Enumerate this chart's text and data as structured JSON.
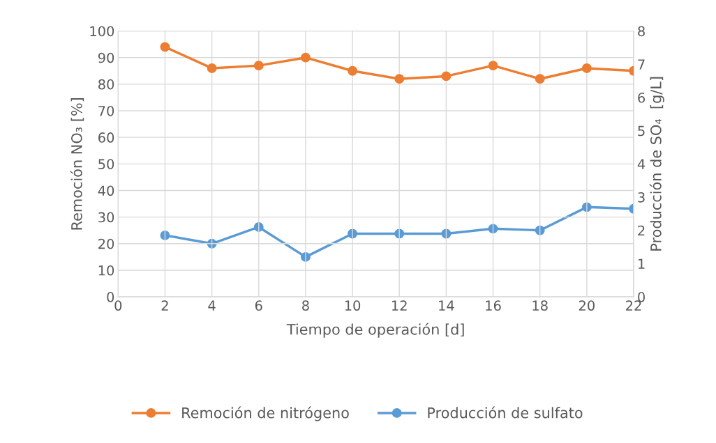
{
  "chart_data": {
    "type": "line",
    "xlabel": "Tiempo de operación [d]",
    "ylabel": "Remoción NO₃ [%]",
    "y2label": "Producción de SO₄  [g/L]",
    "x": [
      2,
      4,
      6,
      8,
      10,
      12,
      14,
      16,
      18,
      20,
      22
    ],
    "series": [
      {
        "name": "Remoción de nitrógeno",
        "color": "#ed7d31",
        "values": [
          94,
          86,
          87,
          90,
          85,
          82,
          83,
          87,
          82,
          86,
          85
        ]
      },
      {
        "name": "Producción de sulfato",
        "color": "#5b9bd5",
        "axis": "y2",
        "values": [
          1.85,
          1.6,
          2.1,
          1.2,
          1.9,
          1.9,
          1.9,
          2.05,
          2.0,
          2.7,
          2.65
        ]
      }
    ],
    "xlim": [
      0,
      22
    ],
    "xticks": [
      0,
      2,
      4,
      6,
      8,
      10,
      12,
      14,
      16,
      18,
      20,
      22
    ],
    "ylim": [
      0,
      100
    ],
    "yticks": [
      0,
      10,
      20,
      30,
      40,
      50,
      60,
      70,
      80,
      90,
      100
    ],
    "y2lim": [
      0,
      8
    ],
    "y2ticks": [
      0,
      1,
      2,
      3,
      4,
      5,
      6,
      7,
      8
    ],
    "grid": true,
    "legend": "bottom",
    "marker": "circle",
    "line_style": "solid"
  }
}
